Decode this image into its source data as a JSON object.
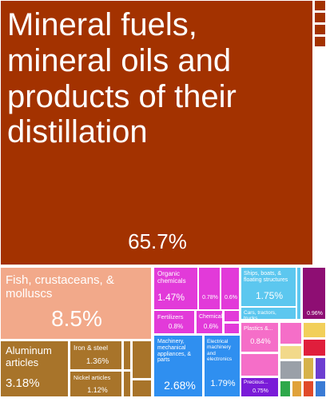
{
  "chart_data": {
    "type": "treemap",
    "title": "",
    "items": [
      {
        "key": "mineral_fuels",
        "label": "Mineral fuels, mineral oils and products of their distillation",
        "value_text": "65.7%",
        "value": 65.7,
        "color": "#a33200"
      },
      {
        "key": "fish",
        "label": "Fish, crustaceans, & molluscs",
        "value_text": "8.5%",
        "value": 8.5,
        "color": "#f2a98a"
      },
      {
        "key": "aluminum",
        "label": "Aluminum articles",
        "value_text": "3.18%",
        "value": 3.18,
        "color": "#a8742a"
      },
      {
        "key": "iron_steel",
        "label": "Iron & steel",
        "value_text": "1.36%",
        "value": 1.36,
        "color": "#a8742a"
      },
      {
        "key": "nickel",
        "label": "Nickel articles",
        "value_text": "1.12%",
        "value": 1.12,
        "color": "#a8742a"
      },
      {
        "key": "organic_chem",
        "label": "Organic chemicals",
        "value_text": "1.47%",
        "value": 1.47,
        "color": "#e23ad9"
      },
      {
        "key": "fertilizers",
        "label": "Fertilizers",
        "value_text": "0.8%",
        "value": 0.8,
        "color": "#e23ad9"
      },
      {
        "key": "chemical_small",
        "label": "Chemical...",
        "value_text": "0.6%",
        "value": 0.6,
        "color": "#e23ad9"
      },
      {
        "key": "chem_078",
        "label": "",
        "value_text": "0.78%",
        "value": 0.78,
        "color": "#e23ad9"
      },
      {
        "key": "oils",
        "label": "",
        "value_text": "0.6%",
        "value": 0.6,
        "color": "#e23ad9"
      },
      {
        "key": "ships",
        "label": "Ships, boats, & floating structures",
        "value_text": "1.75%",
        "value": 1.75,
        "color": "#5cc7ef"
      },
      {
        "key": "cars",
        "label": "Cars, tractors, trucks...",
        "value_text": "",
        "value": null,
        "color": "#5cc7ef"
      },
      {
        "key": "purple_096",
        "label": "",
        "value_text": "0.96%",
        "value": 0.96,
        "color": "#8e0e73"
      },
      {
        "key": "plastics",
        "label": "Plastics &...",
        "value_text": "0.84%",
        "value": 0.84,
        "color": "#f56ec8"
      },
      {
        "key": "machinery",
        "label": "Machinery, mechanical appliances, & parts",
        "value_text": "2.68%",
        "value": 2.68,
        "color": "#2f8ff0"
      },
      {
        "key": "electrical",
        "label": "Electrical machinery and electronics",
        "value_text": "1.79%",
        "value": 1.79,
        "color": "#2f8ff0"
      },
      {
        "key": "precious",
        "label": "Precious...",
        "value_text": "0.75%",
        "value": 0.75,
        "color": "#7a1bd8"
      }
    ]
  }
}
